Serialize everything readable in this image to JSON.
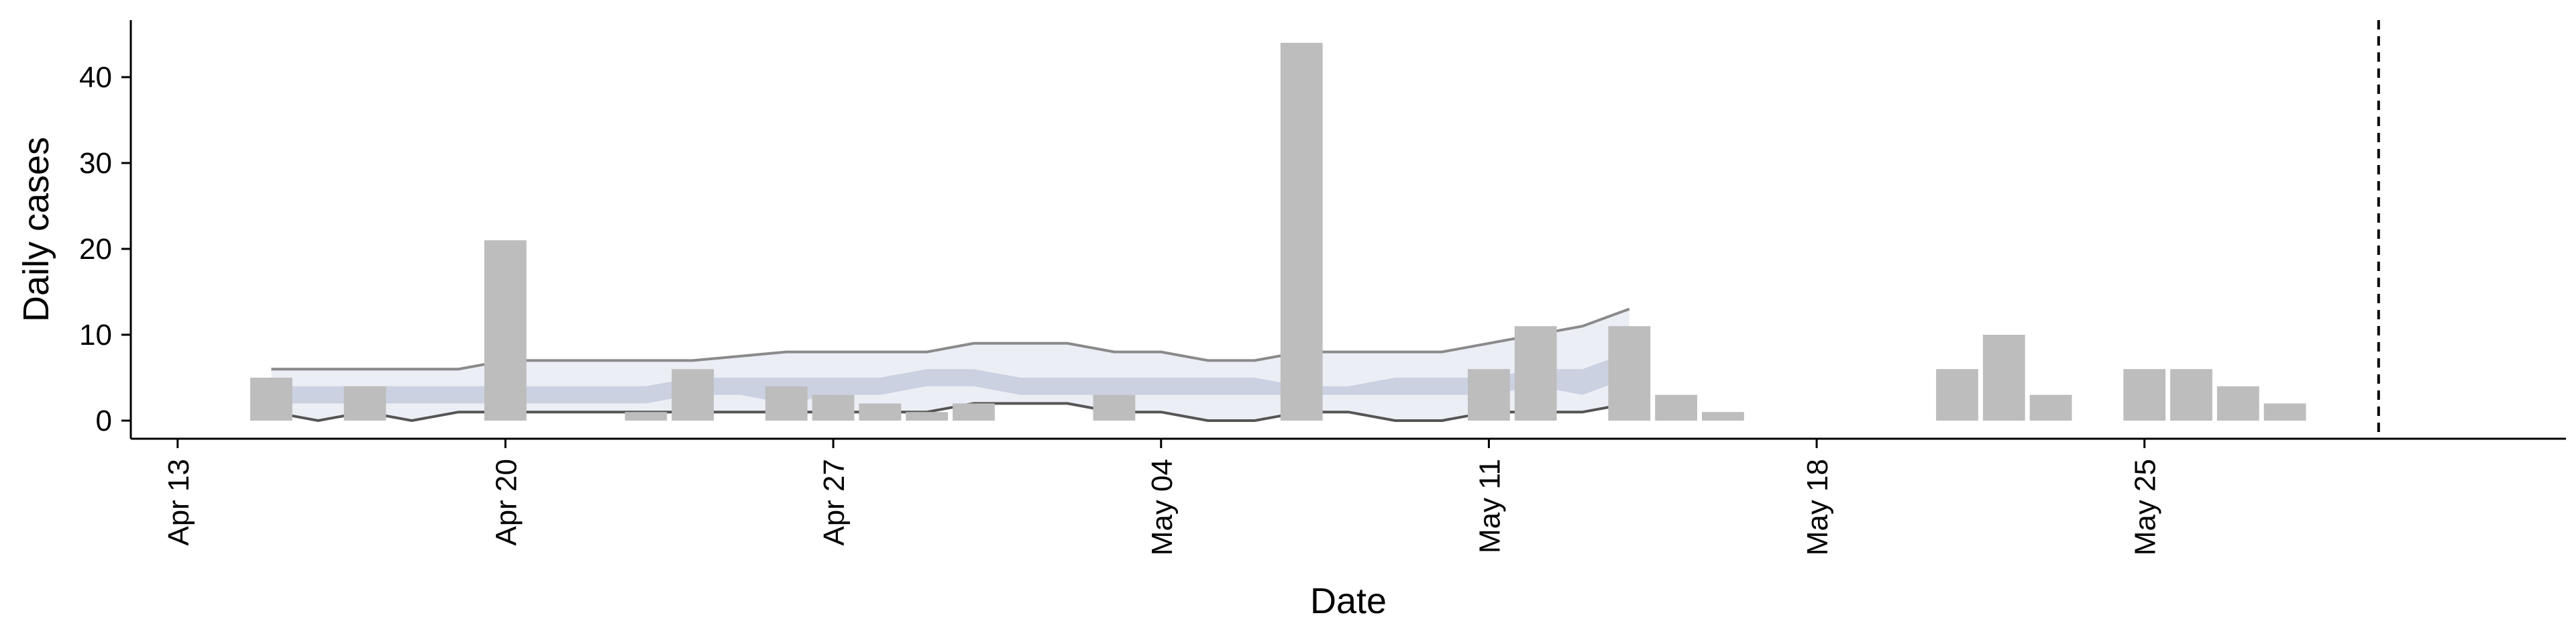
{
  "chart_data": {
    "type": "bar",
    "xlabel": "Date",
    "ylabel": "Daily cases",
    "ylim": [
      0,
      45
    ],
    "yticks": [
      0,
      10,
      20,
      30,
      40
    ],
    "xlim": [
      "2020-04-12",
      "2020-06-03"
    ],
    "xticks": [
      {
        "date": "2020-04-13",
        "label": "Apr 13"
      },
      {
        "date": "2020-04-20",
        "label": "Apr 20"
      },
      {
        "date": "2020-04-27",
        "label": "Apr 27"
      },
      {
        "date": "2020-05-04",
        "label": "May 04"
      },
      {
        "date": "2020-05-11",
        "label": "May 11"
      },
      {
        "date": "2020-05-18",
        "label": "May 18"
      },
      {
        "date": "2020-05-25",
        "label": "May 25"
      }
    ],
    "vline_date": "2020-05-30",
    "bars": [
      {
        "date": "2020-04-15",
        "value": 5
      },
      {
        "date": "2020-04-17",
        "value": 4
      },
      {
        "date": "2020-04-20",
        "value": 21
      },
      {
        "date": "2020-04-23",
        "value": 1
      },
      {
        "date": "2020-04-24",
        "value": 6
      },
      {
        "date": "2020-04-26",
        "value": 4
      },
      {
        "date": "2020-04-27",
        "value": 3
      },
      {
        "date": "2020-04-28",
        "value": 2
      },
      {
        "date": "2020-04-29",
        "value": 1
      },
      {
        "date": "2020-04-30",
        "value": 2
      },
      {
        "date": "2020-05-03",
        "value": 3
      },
      {
        "date": "2020-05-07",
        "value": 44
      },
      {
        "date": "2020-05-11",
        "value": 6
      },
      {
        "date": "2020-05-12",
        "value": 11
      },
      {
        "date": "2020-05-14",
        "value": 11
      },
      {
        "date": "2020-05-15",
        "value": 3
      },
      {
        "date": "2020-05-16",
        "value": 1
      },
      {
        "date": "2020-05-21",
        "value": 6
      },
      {
        "date": "2020-05-22",
        "value": 10
      },
      {
        "date": "2020-05-23",
        "value": 3
      },
      {
        "date": "2020-05-25",
        "value": 6
      },
      {
        "date": "2020-05-26",
        "value": 6
      },
      {
        "date": "2020-05-27",
        "value": 4
      },
      {
        "date": "2020-05-28",
        "value": 2
      }
    ],
    "band": {
      "dates": [
        "2020-04-15",
        "2020-04-16",
        "2020-04-17",
        "2020-04-18",
        "2020-04-19",
        "2020-04-20",
        "2020-04-21",
        "2020-04-22",
        "2020-04-23",
        "2020-04-24",
        "2020-04-25",
        "2020-04-26",
        "2020-04-27",
        "2020-04-28",
        "2020-04-29",
        "2020-04-30",
        "2020-05-01",
        "2020-05-02",
        "2020-05-03",
        "2020-05-04",
        "2020-05-05",
        "2020-05-06",
        "2020-05-07",
        "2020-05-08",
        "2020-05-09",
        "2020-05-10",
        "2020-05-11",
        "2020-05-12",
        "2020-05-13",
        "2020-05-14"
      ],
      "outer_upper": [
        6,
        6,
        6,
        6,
        6,
        7,
        7,
        7,
        7,
        7,
        7.5,
        8,
        8,
        8,
        8,
        9,
        9,
        9,
        8,
        8,
        7,
        7,
        8,
        8,
        8,
        8,
        9,
        10,
        11,
        13
      ],
      "outer_lower": [
        1,
        0,
        1,
        0,
        1,
        1,
        1,
        1,
        1,
        1,
        1,
        1,
        1,
        1,
        1,
        2,
        2,
        2,
        1,
        1,
        0,
        0,
        1,
        1,
        0,
        0,
        1,
        1,
        1,
        2
      ],
      "inner_upper": [
        4,
        4,
        4,
        4,
        4,
        4,
        4,
        4,
        4,
        5,
        5,
        5,
        5,
        5,
        6,
        6,
        5,
        5,
        5,
        5,
        5,
        5,
        4,
        4,
        5,
        5,
        5,
        6,
        6,
        8
      ],
      "inner_lower": [
        2,
        2,
        2,
        2,
        2,
        2,
        2,
        2,
        2,
        3,
        3,
        2,
        3,
        3,
        4,
        4,
        3,
        3,
        3,
        3,
        3,
        3,
        3,
        3,
        3,
        3,
        3,
        4,
        3,
        5
      ],
      "colors": {
        "outer": "#e9ebf3",
        "inner": "#c5cbdd",
        "line": "#8a8a8a"
      }
    },
    "colors": {
      "bar": "#bdbdbd",
      "axis": "#000000",
      "vline": "#000000"
    },
    "grid": false,
    "legend": "none"
  }
}
